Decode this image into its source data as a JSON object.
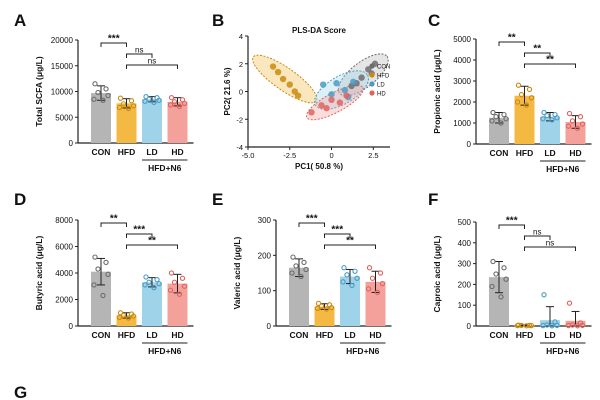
{
  "colors": {
    "CON": "#b5b5b5",
    "HFD": "#f4b942",
    "LD": "#9fd3ea",
    "HD": "#f4a09b",
    "CON_dot": "#6d6d6d",
    "HFD_dot": "#c98a10",
    "LD_dot": "#4a9cc6",
    "HD_dot": "#e0645e",
    "axis": "#222222"
  },
  "chart_data": [
    {
      "id": "A",
      "panel_label": "A",
      "type": "bar",
      "ylabel": "Total SCFA (μg/L)",
      "ylim": [
        0,
        20000
      ],
      "yticks": [
        "0",
        "5000",
        "10000",
        "15000",
        "20000"
      ],
      "categories": [
        "CON",
        "HFD",
        "LD",
        "HD"
      ],
      "values": [
        9700,
        7700,
        8500,
        8000
      ],
      "errors": [
        1400,
        900,
        500,
        800
      ],
      "points": [
        [
          11500,
          10500,
          9800,
          9200,
          8500,
          8300
        ],
        [
          8700,
          8200,
          7600,
          7200,
          6900,
          6700
        ],
        [
          9000,
          8800,
          8500,
          8300,
          8100,
          7900
        ],
        [
          8800,
          8400,
          8000,
          7700,
          7400,
          7100
        ]
      ],
      "group_label": "HFD+N6",
      "significance": [
        {
          "from": 0,
          "to": 1,
          "label": "***",
          "level": 0
        },
        {
          "from": 1,
          "to": 2,
          "label": "ns",
          "level": 1
        },
        {
          "from": 1,
          "to": 3,
          "label": "ns",
          "level": 2
        }
      ]
    },
    {
      "id": "C",
      "panel_label": "C",
      "type": "bar",
      "ylabel": "Propionic acid (μg/L)",
      "ylim": [
        0,
        5000
      ],
      "yticks": [
        "0",
        "1000",
        "2000",
        "3000",
        "4000",
        "5000"
      ],
      "categories": [
        "CON",
        "HFD",
        "LD",
        "HD"
      ],
      "values": [
        1250,
        2300,
        1300,
        1050
      ],
      "errors": [
        250,
        450,
        200,
        300
      ],
      "points": [
        [
          1500,
          1400,
          1300,
          1200,
          1100,
          1000
        ],
        [
          2800,
          2600,
          2350,
          2200,
          2000,
          1850
        ],
        [
          1500,
          1400,
          1350,
          1250,
          1200,
          1150
        ],
        [
          1450,
          1300,
          1100,
          950,
          850,
          750
        ]
      ],
      "group_label": "HFD+N6",
      "significance": [
        {
          "from": 0,
          "to": 1,
          "label": "**",
          "level": 0
        },
        {
          "from": 1,
          "to": 2,
          "label": "**",
          "level": 1
        },
        {
          "from": 1,
          "to": 3,
          "label": "**",
          "level": 2
        }
      ]
    },
    {
      "id": "D",
      "panel_label": "D",
      "type": "bar",
      "ylabel": "Butyric acid (μg/L)",
      "ylim": [
        0,
        8000
      ],
      "yticks": [
        "0",
        "2000",
        "4000",
        "6000",
        "8000"
      ],
      "categories": [
        "CON",
        "HFD",
        "LD",
        "HD"
      ],
      "values": [
        4100,
        800,
        3300,
        3200
      ],
      "errors": [
        1000,
        200,
        350,
        700
      ],
      "points": [
        [
          5200,
          4800,
          4300,
          3900,
          3100,
          2300
        ],
        [
          1000,
          900,
          800,
          750,
          650,
          600
        ],
        [
          3700,
          3500,
          3300,
          3200,
          3100,
          2900
        ],
        [
          4000,
          3600,
          3300,
          3000,
          2700,
          2400
        ]
      ],
      "group_label": "HFD+N6",
      "significance": [
        {
          "from": 0,
          "to": 1,
          "label": "**",
          "level": 0
        },
        {
          "from": 1,
          "to": 2,
          "label": "***",
          "level": 1
        },
        {
          "from": 1,
          "to": 3,
          "label": "**",
          "level": 2
        }
      ]
    },
    {
      "id": "E",
      "panel_label": "E",
      "type": "bar",
      "ylabel": "Valeric acid (μg/L)",
      "ylim": [
        0,
        300
      ],
      "yticks": [
        "0",
        "100",
        "200",
        "300"
      ],
      "categories": [
        "CON",
        "HFD",
        "LD",
        "HD"
      ],
      "values": [
        165,
        55,
        140,
        125
      ],
      "errors": [
        25,
        8,
        20,
        30
      ],
      "points": [
        [
          195,
          180,
          170,
          160,
          150,
          140
        ],
        [
          64,
          60,
          56,
          52,
          50,
          48
        ],
        [
          165,
          155,
          145,
          135,
          125,
          115
        ],
        [
          165,
          150,
          135,
          120,
          105,
          95
        ]
      ],
      "group_label": "HFD+N6",
      "significance": [
        {
          "from": 0,
          "to": 1,
          "label": "***",
          "level": 0
        },
        {
          "from": 1,
          "to": 2,
          "label": "***",
          "level": 1
        },
        {
          "from": 1,
          "to": 3,
          "label": "**",
          "level": 2
        }
      ]
    },
    {
      "id": "F",
      "panel_label": "F",
      "type": "bar",
      "ylabel": "Caproic acid (μg/L)",
      "ylim": [
        0,
        500
      ],
      "yticks": [
        "0",
        "100",
        "200",
        "300",
        "400",
        "500"
      ],
      "categories": [
        "CON",
        "HFD",
        "LD",
        "HD"
      ],
      "values": [
        235,
        3,
        28,
        25
      ],
      "errors": [
        75,
        2,
        65,
        45
      ],
      "points": [
        [
          310,
          280,
          250,
          225,
          190,
          140
        ],
        [
          4,
          3,
          3,
          2,
          2,
          1
        ],
        [
          150,
          20,
          5,
          3,
          2,
          1
        ],
        [
          110,
          15,
          5,
          3,
          2,
          1
        ]
      ],
      "group_label": "HFD+N6",
      "significance": [
        {
          "from": 0,
          "to": 1,
          "label": "***",
          "level": 0
        },
        {
          "from": 1,
          "to": 2,
          "label": "ns",
          "level": 1
        },
        {
          "from": 1,
          "to": 3,
          "label": "ns",
          "level": 2
        }
      ]
    },
    {
      "id": "B",
      "panel_label": "B",
      "type": "scatter",
      "title": "PLS-DA Score",
      "xlabel": "PC1( 50.8 %)",
      "ylabel": "PC2( 21.6 %)",
      "xlim": [
        -5,
        3.5
      ],
      "ylim": [
        -4,
        4
      ],
      "xticks": [
        -5.0,
        -2.5,
        0.0,
        2.5
      ],
      "xtick_labels": [
        "-5.0",
        "-2.5",
        "0",
        "2.5"
      ],
      "yticks": [
        -4,
        -2,
        0,
        2,
        4
      ],
      "ytick_labels": [
        "-4",
        "-2",
        "0",
        "2",
        "4"
      ],
      "legend": [
        "CON",
        "HFD",
        "LD",
        "HD"
      ],
      "series": [
        {
          "name": "CON",
          "ellipse": {
            "cx": 1.9,
            "cy": 1.2,
            "rx": 1.8,
            "ry": 0.9,
            "angle": 38
          },
          "x": [
            1.2,
            1.8,
            2.2,
            2.6,
            1.5,
            2.4
          ],
          "y": [
            0.4,
            1.0,
            1.6,
            2.0,
            0.6,
            1.3
          ]
        },
        {
          "name": "HFD",
          "ellipse": {
            "cx": -2.8,
            "cy": 0.9,
            "rx": 2.3,
            "ry": 0.8,
            "angle": -35
          },
          "x": [
            -3.5,
            -3.2,
            -2.9,
            -2.5,
            -2.2,
            -2.0
          ],
          "y": [
            1.8,
            1.4,
            0.9,
            0.5,
            0.0,
            -0.3
          ]
        },
        {
          "name": "LD",
          "ellipse": {
            "cx": 0.6,
            "cy": 0.1,
            "rx": 1.8,
            "ry": 1.0,
            "angle": 30
          },
          "x": [
            -0.5,
            0.0,
            0.3,
            0.8,
            1.3,
            1.0
          ],
          "y": [
            0.5,
            -0.2,
            0.6,
            0.1,
            0.7,
            -0.4
          ]
        },
        {
          "name": "HD",
          "ellipse": {
            "cx": 0.2,
            "cy": -0.8,
            "rx": 1.9,
            "ry": 0.7,
            "angle": 28
          },
          "x": [
            -1.2,
            -0.6,
            0.0,
            0.5,
            0.9,
            -0.3
          ],
          "y": [
            -1.5,
            -1.0,
            -0.6,
            -0.8,
            -0.3,
            -1.2
          ]
        }
      ]
    }
  ],
  "next_panel_label": "G"
}
